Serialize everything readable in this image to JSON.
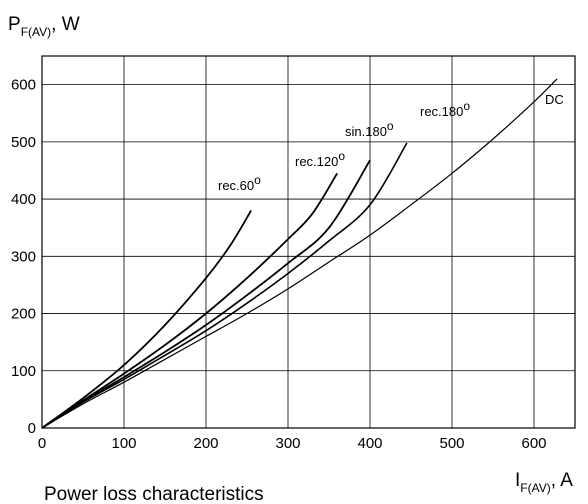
{
  "chart_data": {
    "type": "line",
    "title": "",
    "caption": "Power loss characteristics",
    "ylabel": {
      "main": "P",
      "sub": "F(AV)",
      "unit": ", W"
    },
    "xlabel": {
      "main": "I",
      "sub": "F(AV)",
      "unit": ", A"
    },
    "xlim": [
      0,
      650
    ],
    "ylim": [
      0,
      650
    ],
    "xticks": [
      0,
      100,
      200,
      300,
      400,
      500,
      600
    ],
    "yticks": [
      0,
      100,
      200,
      300,
      400,
      500,
      600
    ],
    "grid": true,
    "series": [
      {
        "name": "DC",
        "label_main": "DC",
        "label_sup": "",
        "stroke": 1.2,
        "x": [
          0,
          50,
          100,
          150,
          200,
          250,
          300,
          350,
          400,
          450,
          500,
          550,
          600,
          628
        ],
        "y": [
          0,
          42,
          80,
          120,
          160,
          200,
          243,
          290,
          337,
          390,
          445,
          505,
          570,
          610
        ]
      },
      {
        "name": "rec.180o",
        "label_main": "rec.180",
        "label_sup": "o",
        "stroke": 1.6,
        "x": [
          0,
          50,
          100,
          150,
          200,
          250,
          300,
          350,
          400,
          445
        ],
        "y": [
          0,
          45,
          85,
          127,
          170,
          218,
          270,
          327,
          390,
          498
        ]
      },
      {
        "name": "sin.180o",
        "label_main": "sin.180",
        "label_sup": "o",
        "stroke": 1.8,
        "x": [
          0,
          50,
          100,
          150,
          200,
          250,
          300,
          350,
          400
        ],
        "y": [
          0,
          46,
          89,
          133,
          180,
          232,
          288,
          350,
          468
        ]
      },
      {
        "name": "rec.120o",
        "label_main": "rec.120",
        "label_sup": "o",
        "stroke": 1.8,
        "x": [
          0,
          50,
          100,
          150,
          200,
          250,
          300,
          330,
          360
        ],
        "y": [
          0,
          48,
          95,
          145,
          200,
          262,
          330,
          375,
          445
        ]
      },
      {
        "name": "rec.60o",
        "label_main": "rec.60",
        "label_sup": "o",
        "stroke": 1.8,
        "x": [
          0,
          50,
          100,
          150,
          200,
          230,
          255
        ],
        "y": [
          0,
          52,
          110,
          180,
          262,
          320,
          380
        ]
      }
    ]
  }
}
